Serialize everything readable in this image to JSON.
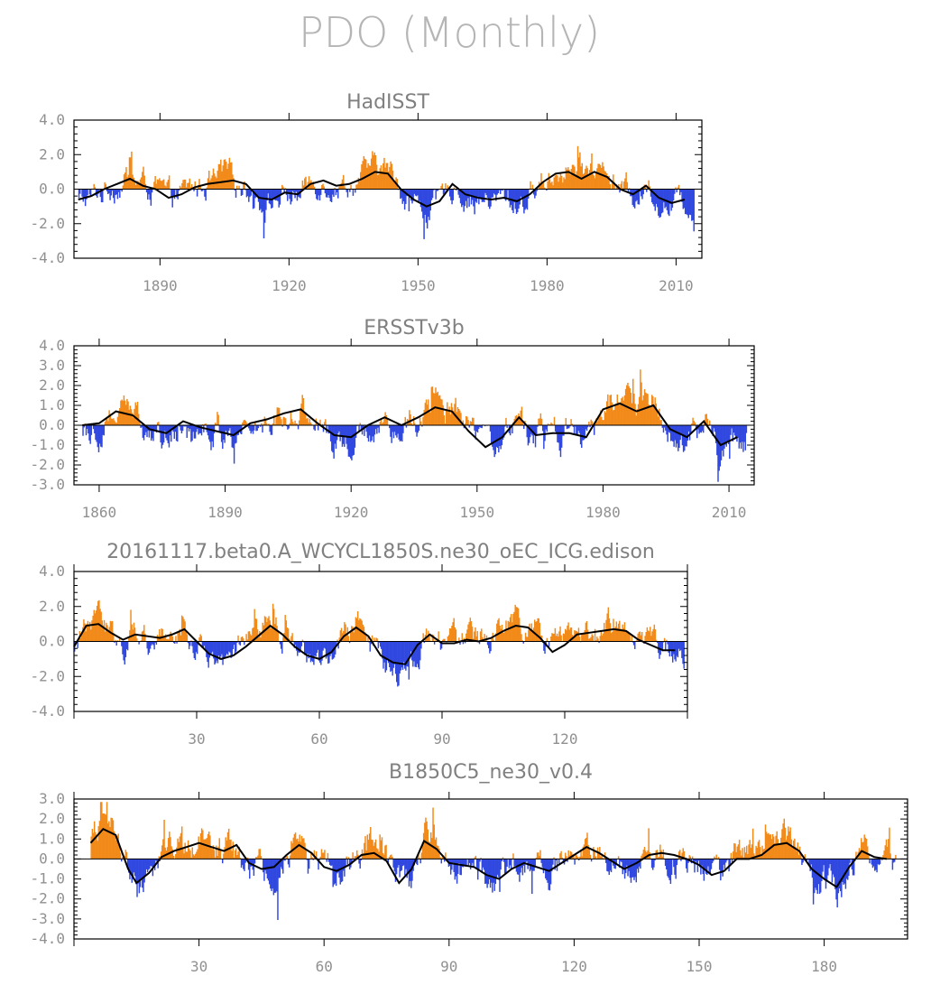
{
  "figure": {
    "title": "PDO (Monthly)"
  },
  "colors": {
    "positive": "#f28a1a",
    "negative": "#3048e0",
    "smooth": "#000000"
  },
  "chart_data": [
    {
      "type": "bar",
      "title": "HadISST",
      "xlim": [
        1870,
        2016
      ],
      "ylim": [
        -4,
        4
      ],
      "xticks": [
        1890,
        1920,
        1950,
        1980,
        2010
      ],
      "yticks": [
        "-4.0",
        "-2.0",
        "0.0",
        "2.0",
        "4.0"
      ],
      "smooth_x": [
        1871,
        1874,
        1877,
        1880,
        1883,
        1886,
        1889,
        1892,
        1895,
        1898,
        1901,
        1904,
        1907,
        1910,
        1913,
        1916,
        1919,
        1922,
        1925,
        1928,
        1931,
        1934,
        1937,
        1940,
        1943,
        1946,
        1949,
        1952,
        1955,
        1958,
        1961,
        1964,
        1967,
        1970,
        1973,
        1976,
        1979,
        1982,
        1985,
        1988,
        1991,
        1994,
        1997,
        2000,
        2003,
        2006,
        2009,
        2012
      ],
      "smooth_y": [
        -0.6,
        -0.4,
        0.0,
        0.3,
        0.6,
        0.2,
        0.0,
        -0.5,
        -0.3,
        0.1,
        0.3,
        0.4,
        0.5,
        0.3,
        -0.5,
        -0.6,
        -0.2,
        -0.3,
        0.3,
        0.5,
        0.2,
        0.3,
        0.6,
        1.0,
        0.9,
        0.0,
        -0.6,
        -1.0,
        -0.7,
        0.3,
        -0.3,
        -0.5,
        -0.6,
        -0.5,
        -0.7,
        -0.3,
        0.4,
        0.9,
        1.0,
        0.6,
        1.0,
        0.7,
        0.0,
        -0.3,
        0.2,
        -0.5,
        -0.8,
        -0.6
      ]
    },
    {
      "type": "bar",
      "title": "ERSSTv3b",
      "xlim": [
        1854,
        2016
      ],
      "ylim": [
        -3,
        4
      ],
      "xticks": [
        1860,
        1890,
        1920,
        1950,
        1980,
        2010
      ],
      "yticks": [
        "-3.0",
        "-2.0",
        "-1.0",
        "0.0",
        "1.0",
        "2.0",
        "3.0",
        "4.0"
      ],
      "smooth_x": [
        1856,
        1860,
        1864,
        1868,
        1872,
        1876,
        1880,
        1884,
        1888,
        1892,
        1896,
        1900,
        1904,
        1908,
        1912,
        1916,
        1920,
        1924,
        1928,
        1932,
        1936,
        1940,
        1944,
        1948,
        1952,
        1956,
        1960,
        1964,
        1968,
        1972,
        1976,
        1980,
        1984,
        1988,
        1992,
        1996,
        2000,
        2004,
        2008,
        2012
      ],
      "smooth_y": [
        0.0,
        0.1,
        0.7,
        0.5,
        -0.2,
        -0.4,
        0.2,
        -0.1,
        -0.3,
        -0.5,
        0.1,
        0.3,
        0.6,
        0.8,
        0.1,
        -0.5,
        -0.6,
        0.0,
        0.4,
        0.0,
        0.4,
        0.9,
        0.7,
        -0.3,
        -1.1,
        -0.6,
        0.4,
        -0.5,
        -0.4,
        -0.4,
        -0.6,
        0.8,
        1.1,
        0.7,
        1.0,
        -0.2,
        -0.6,
        0.2,
        -1.0,
        -0.6
      ]
    },
    {
      "type": "bar",
      "title": "20161117.beta0.A_WCYCL1850S.ne30_oEC_ICG.edison",
      "xlim": [
        0,
        150
      ],
      "ylim": [
        -4,
        4
      ],
      "xticks": [
        30,
        60,
        90,
        120
      ],
      "yticks": [
        "-4.0",
        "-2.0",
        "0.0",
        "2.0",
        "4.0"
      ],
      "smooth_x": [
        0,
        3,
        6,
        9,
        12,
        15,
        18,
        21,
        24,
        27,
        30,
        33,
        36,
        39,
        42,
        45,
        48,
        51,
        54,
        57,
        60,
        63,
        66,
        69,
        72,
        75,
        78,
        81,
        84,
        87,
        90,
        93,
        96,
        99,
        102,
        105,
        108,
        111,
        114,
        117,
        120,
        123,
        126,
        129,
        132,
        135,
        138,
        141,
        144,
        147
      ],
      "smooth_y": [
        -0.3,
        0.9,
        1.0,
        0.5,
        0.1,
        0.4,
        0.3,
        0.2,
        0.4,
        0.7,
        0.0,
        -0.7,
        -1.0,
        -0.8,
        -0.3,
        0.3,
        0.9,
        0.4,
        -0.3,
        -0.8,
        -1.0,
        -0.6,
        0.3,
        0.8,
        0.3,
        -0.8,
        -1.2,
        -1.3,
        -0.2,
        0.4,
        -0.1,
        -0.1,
        0.1,
        0.0,
        0.2,
        0.6,
        0.9,
        0.8,
        0.2,
        -0.6,
        -0.2,
        0.4,
        0.5,
        0.6,
        0.7,
        0.6,
        0.1,
        -0.2,
        -0.5,
        -0.5
      ]
    },
    {
      "type": "bar",
      "title": "B1850C5_ne30_v0.4",
      "xlim": [
        0,
        200
      ],
      "ylim": [
        -4,
        3
      ],
      "xticks": [
        30,
        60,
        90,
        120,
        150,
        180
      ],
      "yticks": [
        "-4.0",
        "-3.0",
        "-2.0",
        "-1.0",
        "0.0",
        "1.0",
        "2.0",
        "3.0"
      ],
      "smooth_x": [
        4,
        7,
        10,
        13,
        15,
        18,
        21,
        24,
        27,
        30,
        33,
        36,
        39,
        42,
        45,
        48,
        51,
        54,
        57,
        60,
        63,
        66,
        69,
        72,
        75,
        78,
        81,
        84,
        87,
        90,
        93,
        96,
        99,
        102,
        105,
        108,
        111,
        114,
        117,
        120,
        123,
        126,
        129,
        132,
        135,
        138,
        141,
        144,
        147,
        150,
        153,
        156,
        159,
        162,
        165,
        168,
        171,
        174,
        177,
        180,
        183,
        186,
        189,
        192,
        195
      ],
      "smooth_y": [
        0.8,
        1.5,
        1.2,
        -0.5,
        -1.2,
        -0.7,
        0.1,
        0.4,
        0.6,
        0.8,
        0.6,
        0.4,
        0.7,
        -0.2,
        -0.5,
        -0.4,
        0.2,
        0.7,
        0.3,
        -0.4,
        -0.6,
        -0.3,
        0.2,
        0.3,
        -0.1,
        -1.2,
        -0.5,
        0.9,
        0.5,
        -0.2,
        -0.3,
        -0.4,
        -0.8,
        -1.0,
        -0.5,
        -0.2,
        -0.4,
        -0.6,
        -0.2,
        0.2,
        0.6,
        0.3,
        -0.1,
        -0.5,
        -0.2,
        0.2,
        0.3,
        0.2,
        0.0,
        -0.3,
        -0.8,
        -0.6,
        0.0,
        0.0,
        0.2,
        0.7,
        0.8,
        0.4,
        -0.5,
        -1.0,
        -1.4,
        -0.4,
        0.4,
        0.1,
        0.0
      ]
    }
  ]
}
